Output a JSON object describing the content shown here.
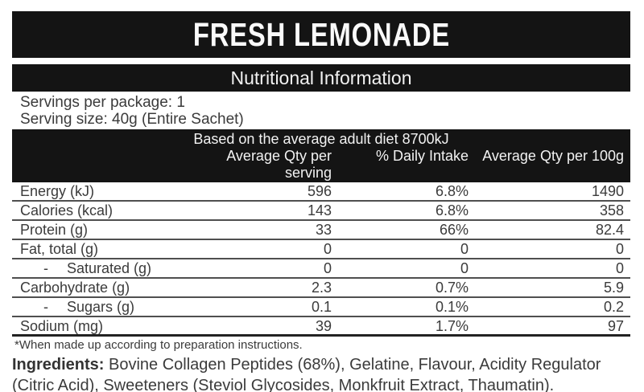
{
  "product": {
    "title": "FRESH LEMONADE"
  },
  "panel": {
    "heading": "Nutritional Information",
    "servings_per_package": "Servings per package: 1",
    "serving_size": "Serving size: 40g (Entire Sachet)",
    "basis": "Based on the average adult diet 8700kJ"
  },
  "table": {
    "columns": {
      "per_serving": "Average Qty per serving",
      "daily_intake": "% Daily Intake",
      "per_100g": "Average Qty per 100g"
    },
    "sub_marker": "-",
    "rows": [
      {
        "label": "Energy (kJ)",
        "sub": false,
        "per_serving": "596",
        "daily_intake": "6.8%",
        "per_100g": "1490"
      },
      {
        "label": "Calories (kcal)",
        "sub": false,
        "per_serving": "143",
        "daily_intake": "6.8%",
        "per_100g": "358"
      },
      {
        "label": "Protein (g)",
        "sub": false,
        "per_serving": "33",
        "daily_intake": "66%",
        "per_100g": "82.4"
      },
      {
        "label": "Fat, total (g)",
        "sub": false,
        "per_serving": "0",
        "daily_intake": "0",
        "per_100g": "0"
      },
      {
        "label": "Saturated (g)",
        "sub": true,
        "per_serving": "0",
        "daily_intake": "0",
        "per_100g": "0"
      },
      {
        "label": "Carbohydrate (g)",
        "sub": false,
        "per_serving": "2.3",
        "daily_intake": "0.7%",
        "per_100g": "5.9"
      },
      {
        "label": "Sugars (g)",
        "sub": true,
        "per_serving": "0.1",
        "daily_intake": "0.1%",
        "per_100g": "0.2"
      },
      {
        "label": "Sodium (mg)",
        "sub": false,
        "per_serving": "39",
        "daily_intake": "1.7%",
        "per_100g": "97"
      }
    ],
    "footnote": "*When made up according to preparation instructions."
  },
  "ingredients": {
    "label": "Ingredients:",
    "text": " Bovine Collagen Peptides (68%), Gelatine, Flavour, Acidity Regulator (Citric Acid), Sweeteners (Steviol Glycosides, Monkfruit Extract, Thaumatin)."
  },
  "colors": {
    "bar_background": "#141414",
    "bar_text": "#f2f2f2",
    "body_text": "#3b3b3b",
    "row_divider": "#4f4f4f",
    "table_bottom_border": "#222222"
  }
}
